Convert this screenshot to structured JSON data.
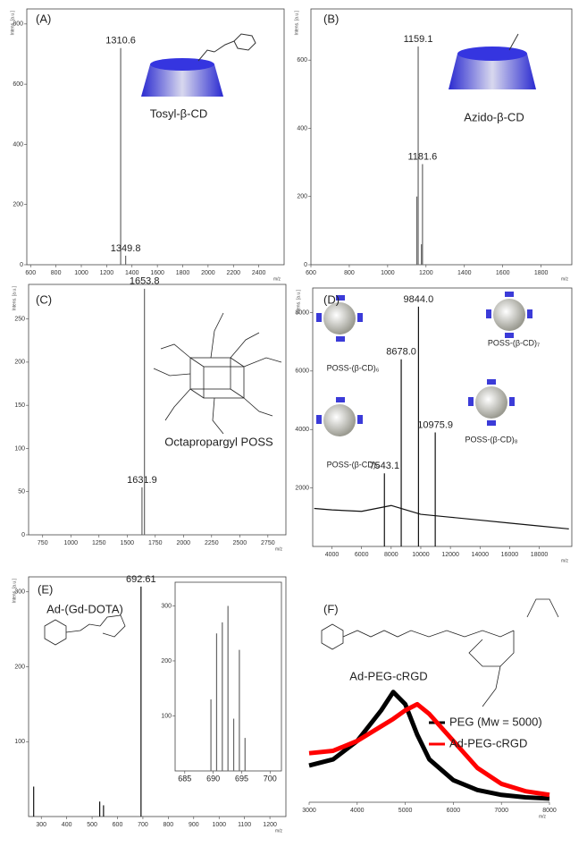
{
  "chart_data": [
    {
      "type": "spectrum",
      "panel": "(A)",
      "ylabel": "Intens. [a.u.]",
      "xlabel": "m/z",
      "compound": "Tosyl-β-CD",
      "color": "#666666",
      "x": [
        1310.6,
        1349.8
      ],
      "values": [
        720,
        30
      ],
      "peak_labels": [
        "1310.6",
        "1349.8"
      ],
      "xlim": [
        570,
        2600
      ],
      "xticks": [
        600,
        800,
        1000,
        1200,
        1400,
        1600,
        1800,
        2000,
        2200,
        2400
      ],
      "ylim": [
        0,
        850
      ],
      "yticks": [
        0,
        200,
        400,
        600,
        800
      ]
    },
    {
      "type": "spectrum",
      "panel": "(B)",
      "ylabel": "Intens. [a.u.]",
      "xlabel": "m/z",
      "compound": "Azido-β-CD",
      "color": "#666666",
      "x": [
        1152,
        1159.1,
        1176,
        1181.6
      ],
      "values": [
        200,
        640,
        60,
        295
      ],
      "peak_labels": [
        null,
        "1159.1",
        null,
        "1181.6"
      ],
      "xlim": [
        600,
        1960
      ],
      "xticks": [
        600,
        800,
        1000,
        1200,
        1400,
        1600,
        1800
      ],
      "ylim": [
        0,
        750
      ],
      "yticks": [
        0,
        200,
        400,
        600
      ]
    },
    {
      "type": "spectrum",
      "panel": "(C)",
      "ylabel": "Intens. [a.u.]",
      "xlabel": "m/z",
      "compound": "Octapropargyl POSS",
      "color": "#666666",
      "x": [
        1631.9,
        1653.8
      ],
      "values": [
        55,
        285
      ],
      "peak_labels": [
        "1631.9",
        "1653.8"
      ],
      "xlim": [
        625,
        2910
      ],
      "xticks": [
        750,
        1000,
        1250,
        1500,
        1750,
        2000,
        2250,
        2500,
        2750
      ],
      "ylim": [
        0,
        290
      ],
      "yticks": [
        0,
        50,
        100,
        150,
        200,
        250
      ]
    },
    {
      "type": "spectrum",
      "panel": "(D)",
      "ylabel": "Intens. [a.u.]",
      "xlabel": "m/z",
      "color": "#111111",
      "structures": [
        "POSS-(β-CD)₆",
        "POSS-(β-CD)₇",
        "POSS-(β-CD)₅",
        "POSS-(β-CD)₈"
      ],
      "x": [
        7543.1,
        8678.0,
        9844.0,
        10975.9
      ],
      "values": [
        2500,
        6400,
        8200,
        3900
      ],
      "peak_labels": [
        "7543.1",
        "8678.0",
        "9844.0",
        "10975.9"
      ],
      "background": {
        "x": [
          2800,
          4000,
          6000,
          7000,
          8000,
          10000,
          12000,
          14000,
          16000,
          18000,
          20000
        ],
        "values": [
          1300,
          1250,
          1200,
          1300,
          1400,
          1100,
          1000,
          900,
          800,
          700,
          600
        ]
      },
      "xlim": [
        2700,
        20200
      ],
      "xticks": [
        4000,
        6000,
        8000,
        10000,
        12000,
        14000,
        16000,
        18000
      ],
      "ylim": [
        0,
        8840
      ],
      "yticks": [
        2000,
        4000,
        6000,
        8000
      ]
    },
    {
      "type": "spectrum",
      "panel": "(E)",
      "ylabel": "Intens. [a.u.]",
      "xlabel": "m/z",
      "compound": "Ad-(Gd-DOTA)",
      "color": "#111111",
      "x": [
        270,
        530,
        545,
        692.61
      ],
      "values": [
        40,
        20,
        15,
        307
      ],
      "peak_labels": [
        null,
        null,
        null,
        "692.61"
      ],
      "xlim": [
        250,
        1263
      ],
      "xticks": [
        300,
        400,
        500,
        600,
        700,
        800,
        900,
        1000,
        1100,
        1200
      ],
      "ylim": [
        0,
        320
      ],
      "yticks": [
        100,
        200,
        300
      ]
    },
    {
      "type": "spectrum",
      "color": "#666666",
      "x": [
        689.6,
        690.6,
        691.6,
        692.6,
        693.6,
        694.6,
        695.6
      ],
      "values": [
        130,
        250,
        270,
        300,
        95,
        220,
        60
      ],
      "xlim": [
        683.3,
        702
      ],
      "xticks": [
        685,
        690,
        695,
        700
      ],
      "ylim": [
        0,
        343
      ],
      "yticks": [
        100,
        200,
        300
      ]
    },
    {
      "type": "line",
      "panel": "(F)",
      "xlabel": "m/z",
      "compound": "Ad-PEG-cRGD",
      "x": [
        3000,
        3500,
        4000,
        4500,
        4750,
        5000,
        5250,
        5500,
        6000,
        6500,
        7000,
        7500,
        8000
      ],
      "series": [
        {
          "name": "PEG (Mw = 5000)",
          "color": "#000000",
          "values": [
            30,
            35,
            50,
            75,
            90,
            80,
            55,
            35,
            18,
            10,
            6,
            4,
            3
          ]
        },
        {
          "name": "Ad-PEG-cRGD",
          "color": "#ff0000",
          "values": [
            40,
            42,
            50,
            62,
            68,
            75,
            80,
            72,
            50,
            28,
            15,
            9,
            6
          ]
        }
      ],
      "xlim": [
        3000,
        8000
      ],
      "xticks": [
        3000,
        4000,
        5000,
        6000,
        7000,
        8000
      ],
      "ylim": [
        0,
        100
      ]
    }
  ]
}
